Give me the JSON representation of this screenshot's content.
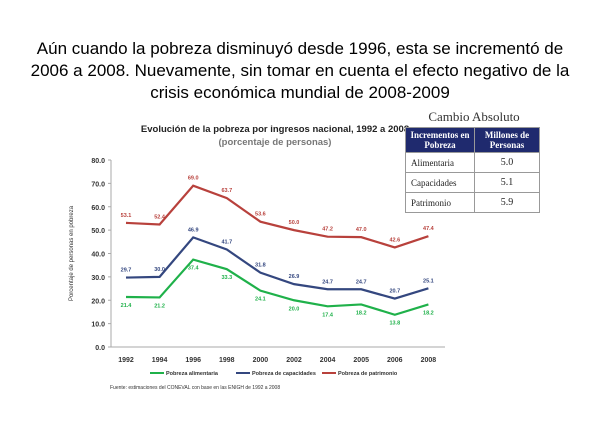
{
  "headline": "Aún cuando la pobreza disminuyó desde 1996, esta se incrementó de 2006 a 2008. Nuevamente, sin tomar en cuenta el efecto negativo de la crisis económica mundial de 2008-2009",
  "table": {
    "title": "Cambio Absoluto",
    "headers": [
      "Incrementos en Pobreza",
      "Millones de Personas"
    ],
    "rows": [
      {
        "label": "Alimentaria",
        "value": "5.0"
      },
      {
        "label": "Capacidades",
        "value": "5.1"
      },
      {
        "label": "Patrimonio",
        "value": "5.9"
      }
    ]
  },
  "source": "Fuente: estimaciones del CONEVAL con base en las ENIGH de 1992 a 2008",
  "chart_data": {
    "type": "line",
    "title": "Evolución de la pobreza por ingresos nacional, 1992 a 2008",
    "subtitle": "(porcentaje de personas)",
    "xlabel": "",
    "ylabel": "Porcentaje de personas en pobreza",
    "ylim": [
      0,
      80
    ],
    "yticks": [
      "0.0",
      "10.0",
      "20.0",
      "30.0",
      "40.0",
      "50.0",
      "60.0",
      "70.0",
      "80.0"
    ],
    "categories": [
      "1992",
      "1994",
      "1996",
      "1998",
      "2000",
      "2002",
      "2004",
      "2005",
      "2006",
      "2008"
    ],
    "legend_position": "bottom",
    "series": [
      {
        "name": "Pobreza alimentaria",
        "color": "#1fb14a",
        "values": [
          21.4,
          21.2,
          37.4,
          33.3,
          24.1,
          20.0,
          17.4,
          18.2,
          13.8,
          18.2
        ],
        "labels": [
          "21.4",
          "21.2",
          "37.4",
          "33.3",
          "24.1",
          "20.0",
          "17.4",
          "18.2",
          "13.8",
          "18.2"
        ],
        "label_pos": "below"
      },
      {
        "name": "Pobreza de capacidades",
        "color": "#34477f",
        "values": [
          29.7,
          30.0,
          46.9,
          41.7,
          31.8,
          26.9,
          24.7,
          24.7,
          20.7,
          25.1
        ],
        "labels": [
          "29.7",
          "30.0",
          "46.9",
          "41.7",
          "31.8",
          "26.9",
          "24.7",
          "24.7",
          "20.7",
          "25.1"
        ],
        "label_pos": "above"
      },
      {
        "name": "Pobreza de patrimonio",
        "color": "#b8413c",
        "values": [
          53.1,
          52.4,
          69.0,
          63.7,
          53.6,
          50.0,
          47.2,
          47.0,
          42.6,
          47.4
        ],
        "labels": [
          "53.1",
          "52.4",
          "69.0",
          "63.7",
          "53.6",
          "50.0",
          "47.2",
          "47.0",
          "42.6",
          "47.4"
        ],
        "label_pos": "above"
      }
    ]
  }
}
